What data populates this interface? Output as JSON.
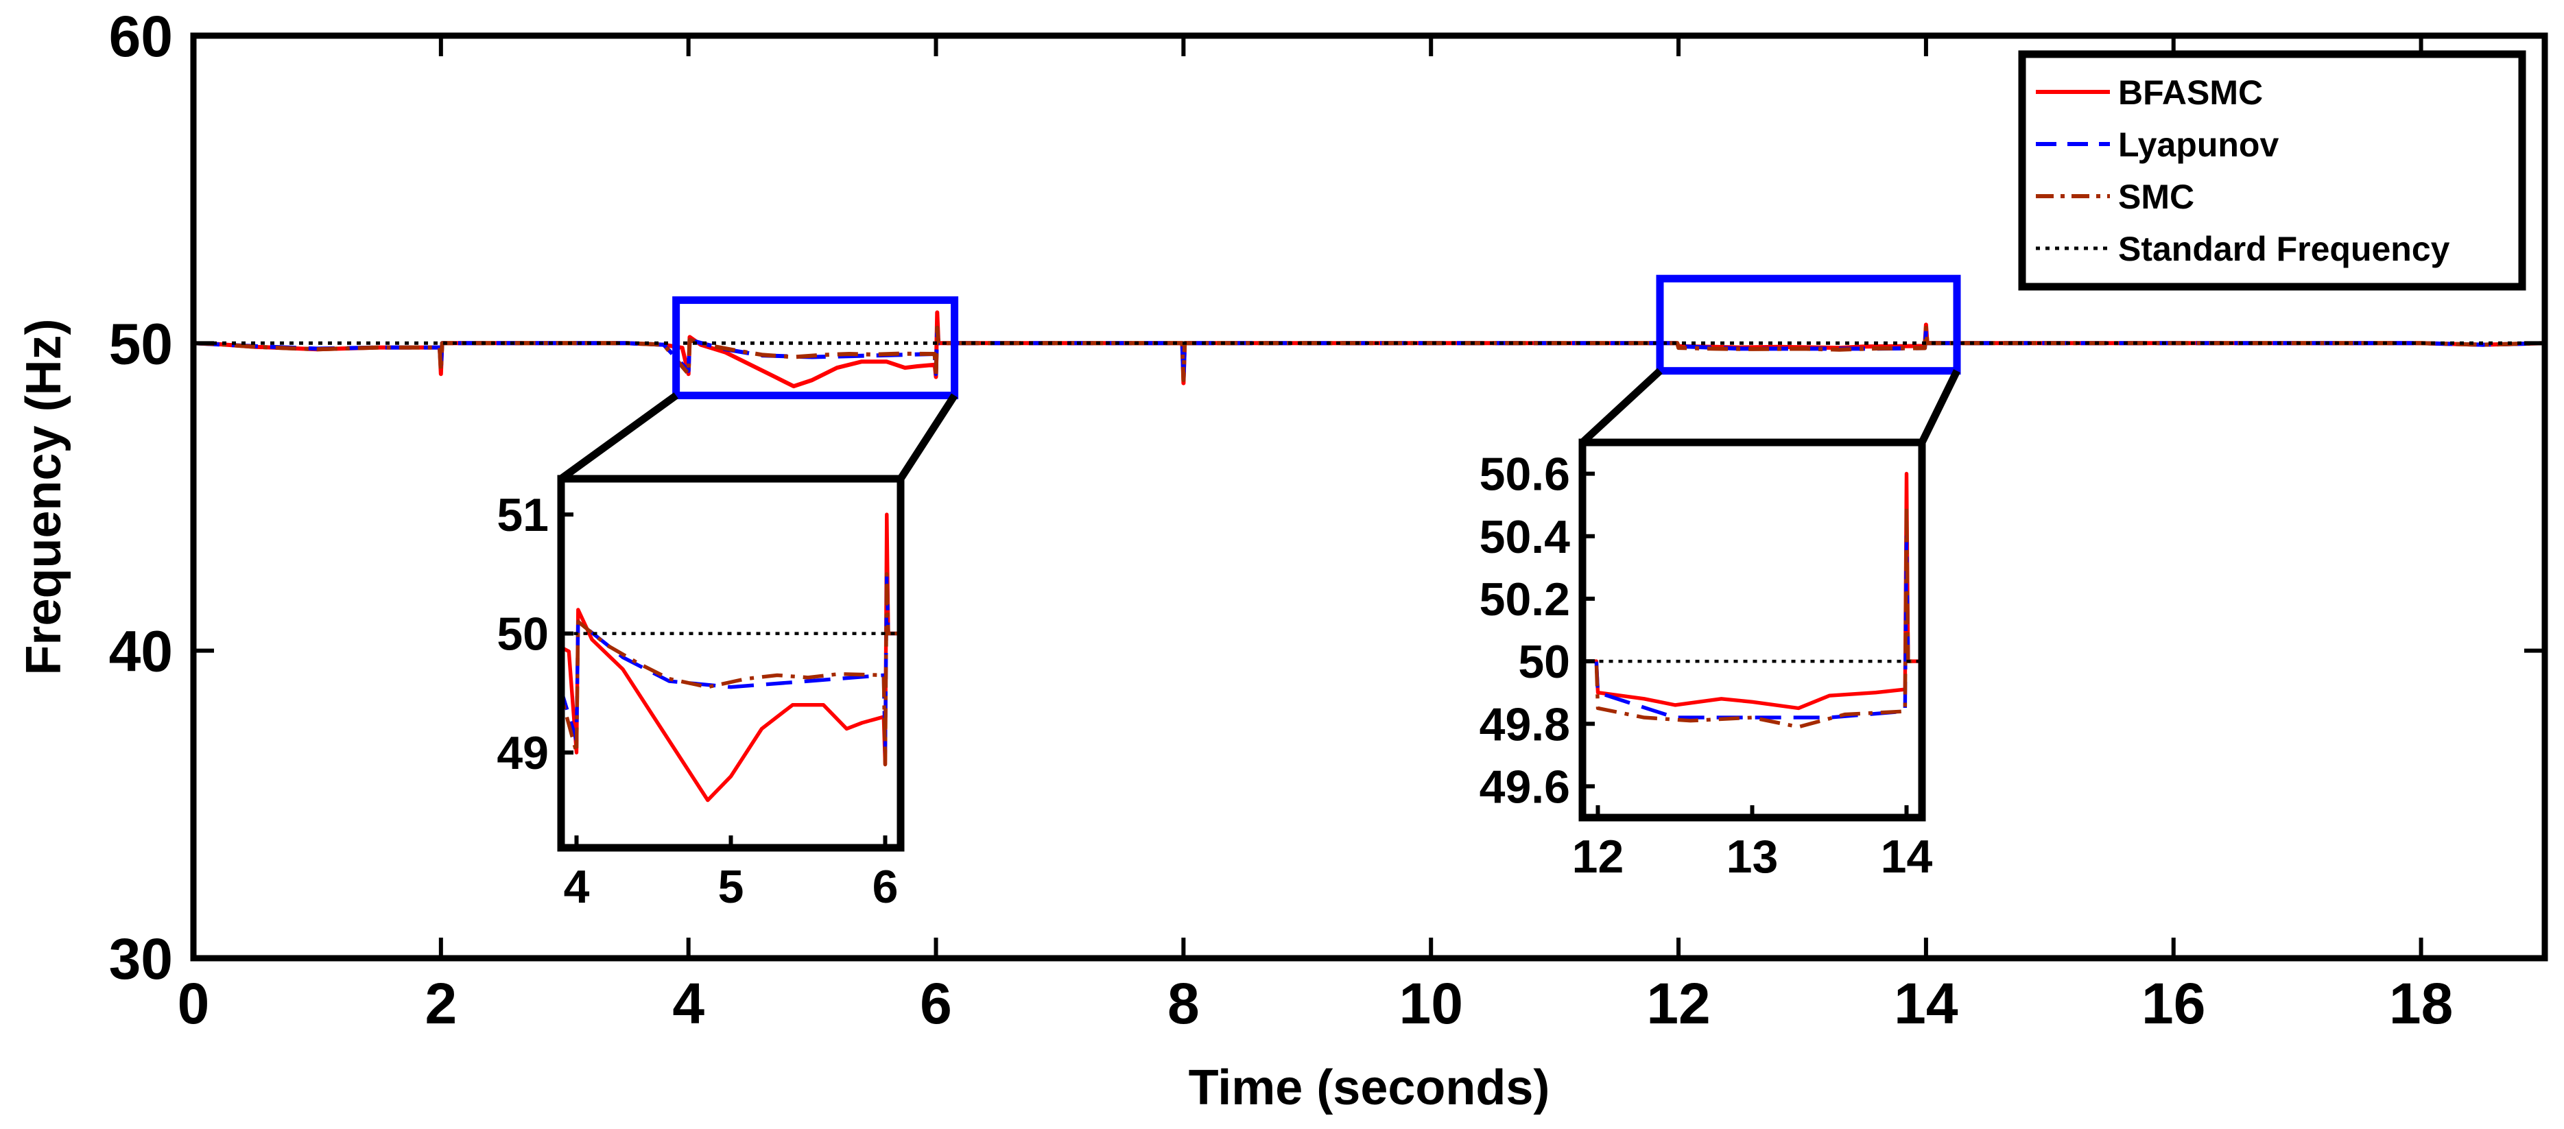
{
  "chart_data": {
    "type": "line",
    "xlabel": "Time (seconds)",
    "ylabel": "Frequency (Hz)",
    "xlim": [
      0,
      19
    ],
    "ylim": [
      30,
      60
    ],
    "xticks": [
      0,
      2,
      4,
      6,
      8,
      10,
      12,
      14,
      16,
      18
    ],
    "xtick_labels": [
      "0",
      "2",
      "4",
      "6",
      "8",
      "10",
      "12",
      "14",
      "16",
      "18"
    ],
    "yticks": [
      30,
      40,
      50,
      60
    ],
    "ytick_labels": [
      "30",
      "40",
      "50",
      "60"
    ],
    "legend_position": "top-right",
    "grid": false,
    "series": [
      {
        "name": "BFASMC",
        "color": "#ff0000",
        "style": "solid",
        "points": [
          [
            0,
            50.0
          ],
          [
            0.2,
            49.97
          ],
          [
            0.5,
            49.88
          ],
          [
            1.0,
            49.8
          ],
          [
            1.5,
            49.86
          ],
          [
            1.99,
            49.86
          ],
          [
            2.0,
            49.0
          ],
          [
            2.01,
            50.0
          ],
          [
            2.5,
            50.0
          ],
          [
            3.0,
            50.0
          ],
          [
            3.5,
            50.0
          ],
          [
            3.8,
            49.95
          ],
          [
            3.95,
            49.85
          ],
          [
            4.0,
            49.0
          ],
          [
            4.01,
            50.2
          ],
          [
            4.1,
            49.95
          ],
          [
            4.3,
            49.7
          ],
          [
            4.5,
            49.3
          ],
          [
            4.7,
            48.9
          ],
          [
            4.85,
            48.6
          ],
          [
            5.0,
            48.8
          ],
          [
            5.2,
            49.2
          ],
          [
            5.4,
            49.4
          ],
          [
            5.6,
            49.4
          ],
          [
            5.75,
            49.2
          ],
          [
            5.85,
            49.25
          ],
          [
            5.99,
            49.3
          ],
          [
            6.0,
            48.9
          ],
          [
            6.01,
            51.0
          ],
          [
            6.02,
            50.0
          ],
          [
            7.0,
            50.0
          ],
          [
            7.99,
            50.0
          ],
          [
            8.0,
            48.7
          ],
          [
            8.01,
            50.0
          ],
          [
            9.0,
            50.0
          ],
          [
            10.0,
            50.0
          ],
          [
            11.0,
            50.0
          ],
          [
            11.99,
            50.0
          ],
          [
            12.0,
            49.9
          ],
          [
            12.3,
            49.88
          ],
          [
            12.5,
            49.86
          ],
          [
            12.8,
            49.88
          ],
          [
            13.0,
            49.87
          ],
          [
            13.3,
            49.85
          ],
          [
            13.5,
            49.89
          ],
          [
            13.8,
            49.9
          ],
          [
            13.99,
            49.91
          ],
          [
            14.0,
            50.6
          ],
          [
            14.01,
            50.0
          ],
          [
            15.0,
            50.0
          ],
          [
            16.0,
            50.0
          ],
          [
            17.0,
            50.0
          ],
          [
            18.0,
            50.0
          ],
          [
            18.5,
            49.95
          ],
          [
            19.0,
            50.0
          ]
        ]
      },
      {
        "name": "Lyapunov",
        "color": "#0000ff",
        "style": "dashed",
        "points": [
          [
            0,
            50.0
          ],
          [
            0.5,
            49.9
          ],
          [
            1.0,
            49.82
          ],
          [
            1.5,
            49.86
          ],
          [
            1.99,
            49.86
          ],
          [
            2.0,
            49.2
          ],
          [
            2.01,
            50.0
          ],
          [
            3.5,
            50.0
          ],
          [
            3.8,
            49.95
          ],
          [
            4.0,
            49.1
          ],
          [
            4.01,
            50.1
          ],
          [
            4.3,
            49.8
          ],
          [
            4.6,
            49.6
          ],
          [
            5.0,
            49.55
          ],
          [
            5.5,
            49.6
          ],
          [
            5.99,
            49.65
          ],
          [
            6.0,
            49.0
          ],
          [
            6.01,
            50.5
          ],
          [
            6.02,
            50.0
          ],
          [
            7.99,
            50.0
          ],
          [
            8.0,
            48.8
          ],
          [
            8.01,
            50.0
          ],
          [
            11.99,
            50.0
          ],
          [
            12.0,
            49.9
          ],
          [
            12.5,
            49.82
          ],
          [
            13.0,
            49.82
          ],
          [
            13.5,
            49.82
          ],
          [
            13.99,
            49.84
          ],
          [
            14.0,
            50.4
          ],
          [
            14.01,
            50.0
          ],
          [
            18.0,
            50.0
          ],
          [
            18.5,
            49.95
          ],
          [
            19.0,
            50.0
          ]
        ]
      },
      {
        "name": "SMC",
        "color": "#a52a00",
        "style": "dashdot",
        "points": [
          [
            0,
            50.0
          ],
          [
            0.2,
            49.97
          ],
          [
            0.5,
            49.88
          ],
          [
            1.0,
            49.8
          ],
          [
            1.5,
            49.86
          ],
          [
            1.99,
            49.86
          ],
          [
            2.0,
            49.1
          ],
          [
            2.01,
            50.0
          ],
          [
            3.5,
            50.0
          ],
          [
            3.8,
            49.95
          ],
          [
            4.0,
            49.0
          ],
          [
            4.01,
            50.1
          ],
          [
            4.2,
            49.9
          ],
          [
            4.4,
            49.75
          ],
          [
            4.6,
            49.62
          ],
          [
            4.85,
            49.55
          ],
          [
            5.1,
            49.62
          ],
          [
            5.3,
            49.65
          ],
          [
            5.5,
            49.63
          ],
          [
            5.7,
            49.66
          ],
          [
            5.99,
            49.65
          ],
          [
            6.0,
            48.9
          ],
          [
            6.01,
            50.5
          ],
          [
            6.02,
            50.0
          ],
          [
            7.99,
            50.0
          ],
          [
            8.0,
            48.8
          ],
          [
            8.01,
            50.0
          ],
          [
            11.99,
            50.0
          ],
          [
            12.0,
            49.85
          ],
          [
            12.3,
            49.82
          ],
          [
            12.6,
            49.81
          ],
          [
            13.0,
            49.82
          ],
          [
            13.3,
            49.79
          ],
          [
            13.6,
            49.83
          ],
          [
            13.99,
            49.84
          ],
          [
            14.0,
            50.5
          ],
          [
            14.01,
            50.0
          ],
          [
            18.0,
            50.0
          ],
          [
            18.5,
            49.95
          ],
          [
            19.0,
            50.0
          ]
        ]
      },
      {
        "name": "Standard Frequency",
        "color": "#000000",
        "style": "dotted",
        "points": [
          [
            0,
            50
          ],
          [
            19,
            50
          ]
        ]
      }
    ],
    "insets": [
      {
        "name": "inset-1",
        "xlim": [
          3.9,
          6.1
        ],
        "ylim": [
          48.2,
          51.3
        ],
        "xticks": [
          4,
          5,
          6
        ],
        "xtick_labels": [
          "4",
          "5",
          "6"
        ],
        "yticks": [
          49,
          50,
          51
        ],
        "ytick_labels": [
          "49",
          "50",
          "51"
        ],
        "zoom_xlim": [
          3.9,
          6.15
        ],
        "zoom_ylim": [
          48.3,
          51.4
        ]
      },
      {
        "name": "inset-2",
        "xlim": [
          11.9,
          14.1
        ],
        "ylim": [
          49.5,
          50.7
        ],
        "xticks": [
          12,
          13,
          14
        ],
        "xtick_labels": [
          "12",
          "13",
          "14"
        ],
        "yticks": [
          49.6,
          49.8,
          50,
          50.2,
          50.4,
          50.6
        ],
        "ytick_labels": [
          "49.6",
          "49.8",
          "50",
          "50.2",
          "50.4",
          "50.6"
        ],
        "zoom_xlim": [
          11.85,
          14.25
        ],
        "zoom_ylim": [
          49.1,
          52.1
        ]
      }
    ]
  }
}
